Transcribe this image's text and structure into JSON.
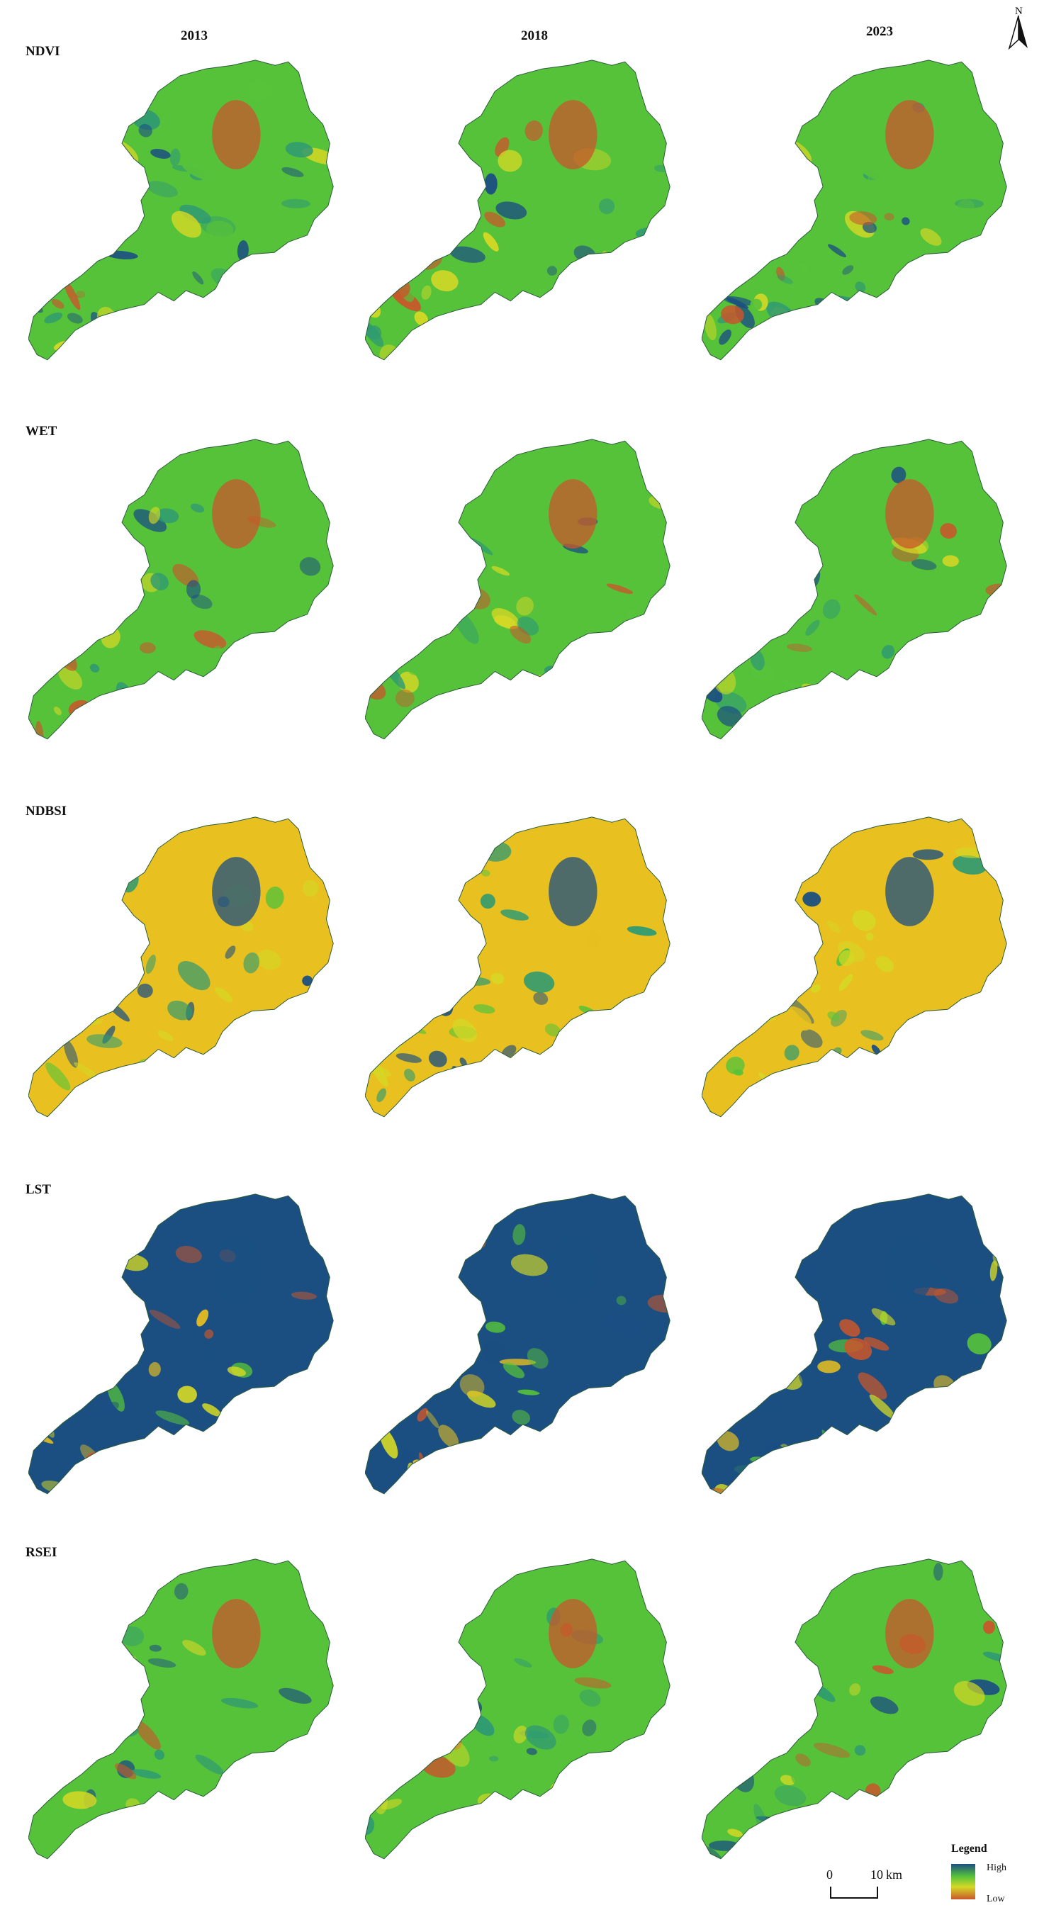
{
  "figure": {
    "years": [
      "2013",
      "2018",
      "2023"
    ],
    "indices": [
      {
        "name": "NDVI",
        "scheme": "std"
      },
      {
        "name": "WET",
        "scheme": "std"
      },
      {
        "name": "NDBSI",
        "scheme": "ndbsi"
      },
      {
        "name": "LST",
        "scheme": "lst"
      },
      {
        "name": "RSEI",
        "scheme": "std"
      }
    ]
  },
  "north_arrow": {
    "label": "N"
  },
  "scale_bar": {
    "start": "0",
    "end": "10",
    "unit": "km"
  },
  "legend": {
    "title": "Legend",
    "high": "High",
    "low": "Low"
  },
  "colors": {
    "high": "#1b4f82",
    "mid_high": "#2f9a72",
    "mid": "#56c23a",
    "mid_low": "#d5d825",
    "low": "#c9562b",
    "low_end": "#e8c020"
  }
}
